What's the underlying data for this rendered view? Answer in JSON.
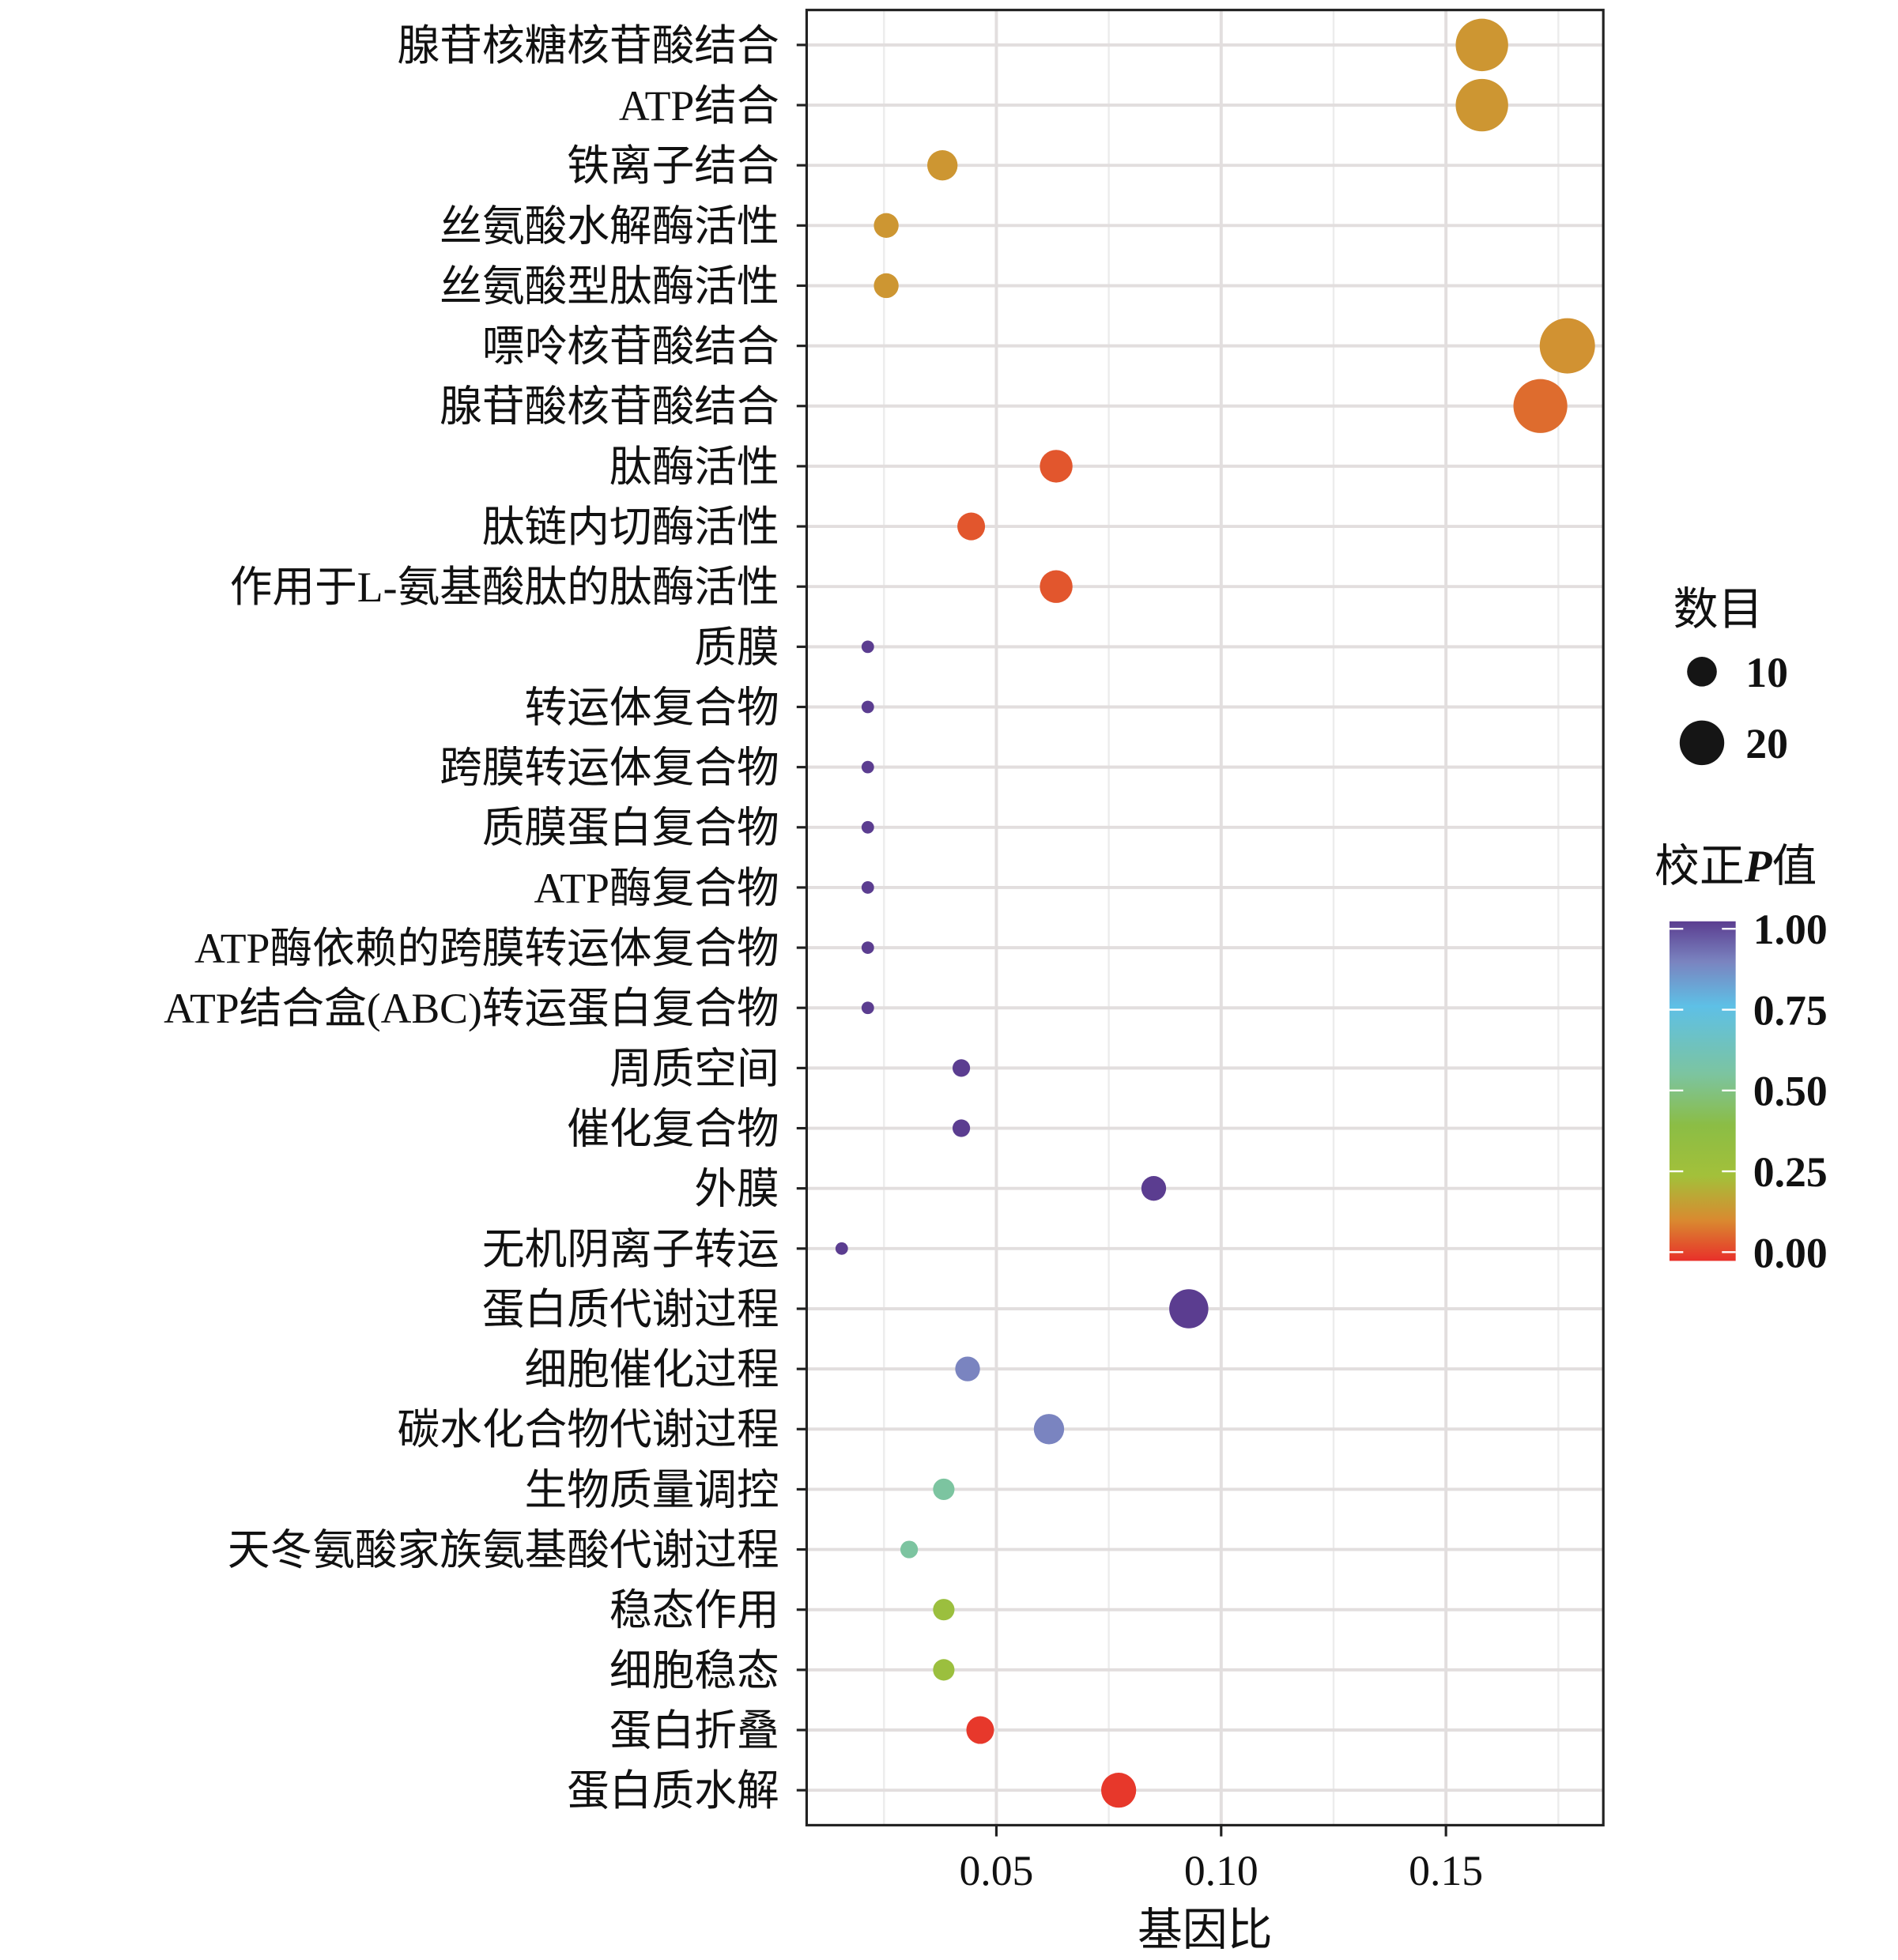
{
  "chart_data": {
    "type": "scatter",
    "title": "",
    "xlabel": "基因比",
    "ylabel": "",
    "xlim": [
      0.0078,
      0.185
    ],
    "xticks": [
      0.05,
      0.1,
      0.15
    ],
    "xtick_labels": [
      "0.05",
      "0.10",
      "0.15"
    ],
    "grid": true,
    "categories": [
      "腺苷核糖核苷酸结合",
      "ATP结合",
      "铁离子结合",
      "丝氨酸水解酶活性",
      "丝氨酸型肽酶活性",
      "嘌呤核苷酸结合",
      "腺苷酸核苷酸结合",
      "肽酶活性",
      "肽链内切酶活性",
      "作用于L-氨基酸肽的肽酶活性",
      "质膜",
      "转运体复合物",
      "跨膜转运体复合物",
      "质膜蛋白复合物",
      "ATP酶复合物",
      "ATP酶依赖的跨膜转运体复合物",
      "ATP结合盒(ABC)转运蛋白复合物",
      "周质空间",
      "催化复合物",
      "外膜",
      "无机阴离子转运",
      "蛋白质代谢过程",
      "细胞催化过程",
      "碳水化合物代谢过程",
      "生物质量调控",
      "天冬氨酸家族氨基酸代谢过程",
      "稳态作用",
      "细胞稳态",
      "蛋白折叠",
      "蛋白质水解"
    ],
    "gene_ratio": [
      0.158,
      0.158,
      0.038,
      0.0255,
      0.0255,
      0.177,
      0.171,
      0.0633,
      0.0444,
      0.0633,
      0.0214,
      0.0214,
      0.0214,
      0.0214,
      0.0214,
      0.0214,
      0.0214,
      0.0422,
      0.0422,
      0.085,
      0.0156,
      0.0928,
      0.0436,
      0.0617,
      0.0383,
      0.0306,
      0.0383,
      0.0383,
      0.0464,
      0.0772
    ],
    "count": [
      20,
      20,
      8,
      6,
      6,
      22,
      21,
      9,
      7,
      9,
      3,
      3,
      3,
      3,
      3,
      3,
      3,
      4,
      4,
      6,
      3,
      12,
      6,
      8,
      5,
      4,
      5,
      5,
      7,
      10
    ],
    "adjusted_p": [
      0.15,
      0.15,
      0.15,
      0.15,
      0.15,
      0.14,
      0.08,
      0.05,
      0.05,
      0.05,
      1.0,
      1.0,
      1.0,
      1.0,
      1.0,
      1.0,
      1.0,
      1.0,
      1.0,
      1.0,
      1.0,
      1.0,
      0.88,
      0.88,
      0.55,
      0.55,
      0.3,
      0.3,
      0.01,
      0.01
    ],
    "size_legend": {
      "title": "数目",
      "values": [
        10,
        20
      ],
      "labels": [
        "10",
        "20"
      ]
    },
    "color_legend": {
      "title_prefix": "校正",
      "title_italic": "P",
      "title_suffix": "值",
      "range": [
        0,
        1
      ],
      "ticks": [
        1.0,
        0.75,
        0.5,
        0.25,
        0.0
      ],
      "labels": [
        "1.00",
        "0.75",
        "0.50",
        "0.25",
        "0.00"
      ],
      "stops": [
        {
          "v": 0.0,
          "c": "#e8302a"
        },
        {
          "v": 0.12,
          "c": "#d98a30"
        },
        {
          "v": 0.25,
          "c": "#a3c03a"
        },
        {
          "v": 0.4,
          "c": "#8bbd45"
        },
        {
          "v": 0.55,
          "c": "#7cc4a0"
        },
        {
          "v": 0.75,
          "c": "#5ec0e6"
        },
        {
          "v": 0.88,
          "c": "#7a84c0"
        },
        {
          "v": 1.0,
          "c": "#5b3d90"
        }
      ]
    }
  }
}
